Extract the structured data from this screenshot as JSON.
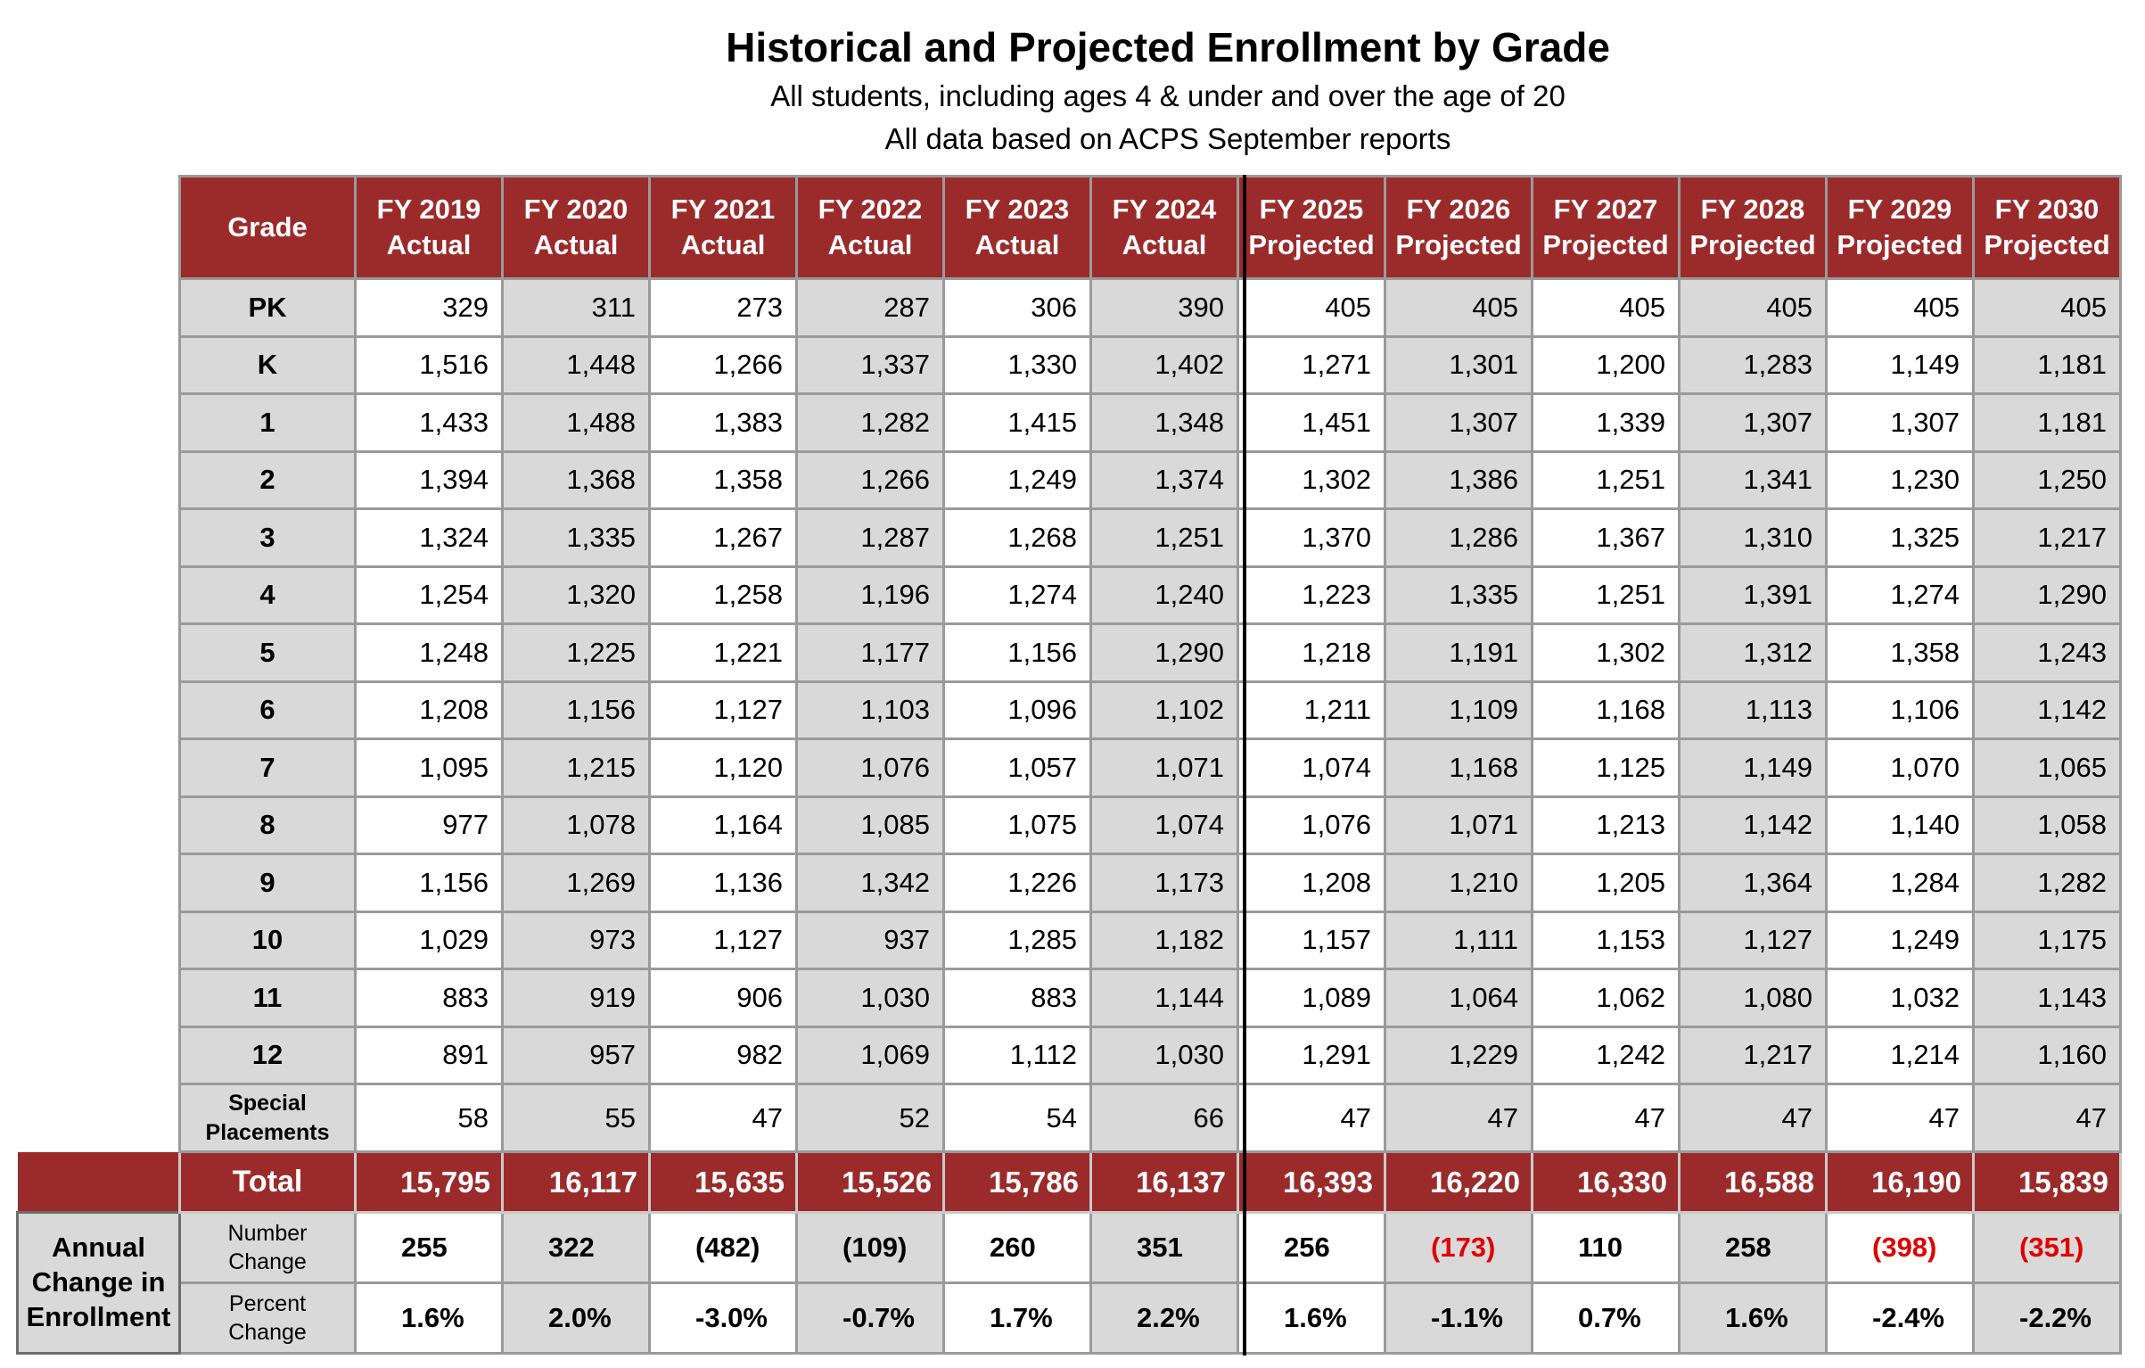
{
  "title": "Historical and Projected Enrollment by Grade",
  "subtitle_1": "All students, including ages 4 & under and over the age of 20",
  "subtitle_2": "All data based on ACPS September reports",
  "chart_data": {
    "type": "table",
    "title": "Historical and Projected Enrollment by Grade",
    "columns": [
      {
        "year": "FY 2019",
        "kind": "Actual"
      },
      {
        "year": "FY 2020",
        "kind": "Actual"
      },
      {
        "year": "FY 2021",
        "kind": "Actual"
      },
      {
        "year": "FY 2022",
        "kind": "Actual"
      },
      {
        "year": "FY 2023",
        "kind": "Actual"
      },
      {
        "year": "FY 2024",
        "kind": "Actual"
      },
      {
        "year": "FY 2025",
        "kind": "Projected"
      },
      {
        "year": "FY 2026",
        "kind": "Projected"
      },
      {
        "year": "FY 2027",
        "kind": "Projected"
      },
      {
        "year": "FY 2028",
        "kind": "Projected"
      },
      {
        "year": "FY 2029",
        "kind": "Projected"
      },
      {
        "year": "FY 2030",
        "kind": "Projected"
      }
    ],
    "grade_header": "Grade",
    "rows": [
      {
        "grade": "PK",
        "values": [
          "329",
          "311",
          "273",
          "287",
          "306",
          "390",
          "405",
          "405",
          "405",
          "405",
          "405",
          "405"
        ]
      },
      {
        "grade": "K",
        "values": [
          "1,516",
          "1,448",
          "1,266",
          "1,337",
          "1,330",
          "1,402",
          "1,271",
          "1,301",
          "1,200",
          "1,283",
          "1,149",
          "1,181"
        ]
      },
      {
        "grade": "1",
        "values": [
          "1,433",
          "1,488",
          "1,383",
          "1,282",
          "1,415",
          "1,348",
          "1,451",
          "1,307",
          "1,339",
          "1,307",
          "1,307",
          "1,181"
        ]
      },
      {
        "grade": "2",
        "values": [
          "1,394",
          "1,368",
          "1,358",
          "1,266",
          "1,249",
          "1,374",
          "1,302",
          "1,386",
          "1,251",
          "1,341",
          "1,230",
          "1,250"
        ]
      },
      {
        "grade": "3",
        "values": [
          "1,324",
          "1,335",
          "1,267",
          "1,287",
          "1,268",
          "1,251",
          "1,370",
          "1,286",
          "1,367",
          "1,310",
          "1,325",
          "1,217"
        ]
      },
      {
        "grade": "4",
        "values": [
          "1,254",
          "1,320",
          "1,258",
          "1,196",
          "1,274",
          "1,240",
          "1,223",
          "1,335",
          "1,251",
          "1,391",
          "1,274",
          "1,290"
        ]
      },
      {
        "grade": "5",
        "values": [
          "1,248",
          "1,225",
          "1,221",
          "1,177",
          "1,156",
          "1,290",
          "1,218",
          "1,191",
          "1,302",
          "1,312",
          "1,358",
          "1,243"
        ]
      },
      {
        "grade": "6",
        "values": [
          "1,208",
          "1,156",
          "1,127",
          "1,103",
          "1,096",
          "1,102",
          "1,211",
          "1,109",
          "1,168",
          "1,113",
          "1,106",
          "1,142"
        ]
      },
      {
        "grade": "7",
        "values": [
          "1,095",
          "1,215",
          "1,120",
          "1,076",
          "1,057",
          "1,071",
          "1,074",
          "1,168",
          "1,125",
          "1,149",
          "1,070",
          "1,065"
        ]
      },
      {
        "grade": "8",
        "values": [
          "977",
          "1,078",
          "1,164",
          "1,085",
          "1,075",
          "1,074",
          "1,076",
          "1,071",
          "1,213",
          "1,142",
          "1,140",
          "1,058"
        ]
      },
      {
        "grade": "9",
        "values": [
          "1,156",
          "1,269",
          "1,136",
          "1,342",
          "1,226",
          "1,173",
          "1,208",
          "1,210",
          "1,205",
          "1,364",
          "1,284",
          "1,282"
        ]
      },
      {
        "grade": "10",
        "values": [
          "1,029",
          "973",
          "1,127",
          "937",
          "1,285",
          "1,182",
          "1,157",
          "1,111",
          "1,153",
          "1,127",
          "1,249",
          "1,175"
        ]
      },
      {
        "grade": "11",
        "values": [
          "883",
          "919",
          "906",
          "1,030",
          "883",
          "1,144",
          "1,089",
          "1,064",
          "1,062",
          "1,080",
          "1,032",
          "1,143"
        ]
      },
      {
        "grade": "12",
        "values": [
          "891",
          "957",
          "982",
          "1,069",
          "1,112",
          "1,030",
          "1,291",
          "1,229",
          "1,242",
          "1,217",
          "1,214",
          "1,160"
        ]
      }
    ],
    "special_row": {
      "label_1": "Special",
      "label_2": "Placements",
      "values": [
        "58",
        "55",
        "47",
        "52",
        "54",
        "66",
        "47",
        "47",
        "47",
        "47",
        "47",
        "47"
      ]
    },
    "total_row": {
      "label": "Total",
      "values": [
        "15,795",
        "16,117",
        "15,635",
        "15,526",
        "15,786",
        "16,137",
        "16,393",
        "16,220",
        "16,330",
        "16,588",
        "16,190",
        "15,839"
      ]
    },
    "annual_change": {
      "label_1": "Annual",
      "label_2": "Change in",
      "label_3": "Enrollment",
      "number_row": {
        "label_1": "Number",
        "label_2": "Change",
        "values": [
          "255",
          "322",
          "(482)",
          "(109)",
          "260",
          "351",
          "256",
          "(173)",
          "110",
          "258",
          "(398)",
          "(351)"
        ]
      },
      "percent_row": {
        "label_1": "Percent",
        "label_2": "Change",
        "values": [
          "1.6%",
          "2.0%",
          "-3.0%",
          "-0.7%",
          "1.7%",
          "2.2%",
          "1.6%",
          "-1.1%",
          "0.7%",
          "1.6%",
          "-2.4%",
          "-2.2%"
        ]
      }
    },
    "negative_highlight_color": "#e00000",
    "header_color": "#9b2b2b",
    "label_cell_color": "#d9d9d9"
  }
}
